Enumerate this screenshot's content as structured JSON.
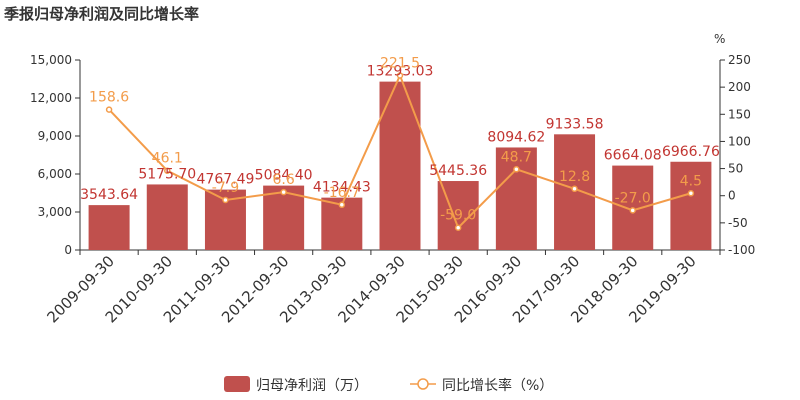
{
  "chart_data": {
    "type": "bar+line",
    "title": "季报归母净利润及同比增长率",
    "categories": [
      "2009-09-30",
      "2010-09-30",
      "2011-09-30",
      "2012-09-30",
      "2013-09-30",
      "2014-09-30",
      "2015-09-30",
      "2016-09-30",
      "2017-09-30",
      "2018-09-30",
      "2019-09-30"
    ],
    "series": [
      {
        "name": "归母净利润（万）",
        "type": "bar",
        "axis": "left",
        "color": "#c0504d",
        "values": [
          3543.64,
          5175.7,
          4767.49,
          5084.4,
          4134.43,
          13293.03,
          5445.36,
          8094.62,
          9133.58,
          6664.08,
          6966.76
        ],
        "labels": [
          "3543.64",
          "5175.70",
          "4767.49",
          "5084.40",
          "4134.43",
          "13293.03",
          "5445.36",
          "8094.62",
          "9133.58",
          "6664.08",
          "6966.76"
        ]
      },
      {
        "name": "同比增长率（%）",
        "type": "line",
        "axis": "right",
        "color": "#f39c4a",
        "values": [
          158.6,
          46.1,
          -7.9,
          6.6,
          -16.7,
          221.5,
          -59.0,
          48.7,
          12.8,
          -27.0,
          4.5
        ],
        "labels": [
          "158.6",
          "46.1",
          "-7.9",
          "6.6",
          "-16.7",
          "221.5",
          "-59.0",
          "48.7",
          "12.8",
          "-27.0",
          "4.5"
        ]
      }
    ],
    "y_left": {
      "min": 0,
      "max": 15000,
      "ticks": [
        "0",
        "3,000",
        "6,000",
        "9,000",
        "12,000",
        "15,000"
      ]
    },
    "y_right": {
      "min": -100,
      "max": 250,
      "ticks": [
        "-100",
        "-50",
        "0",
        "50",
        "100",
        "150",
        "200",
        "250"
      ],
      "unit": "%"
    },
    "legend": {
      "position": "bottom-center",
      "items": [
        "归母净利润（万）",
        "同比增长率（%）"
      ]
    },
    "grid": false
  }
}
